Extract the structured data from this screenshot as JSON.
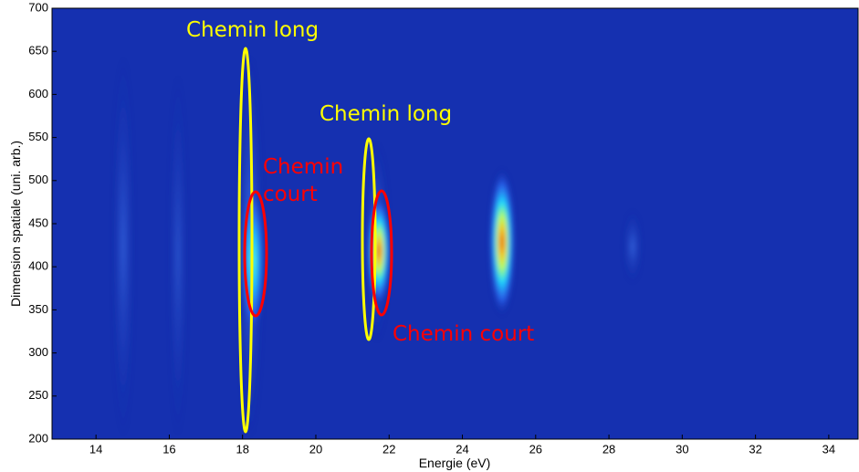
{
  "chart_data": {
    "type": "image",
    "xlabel": "Energie (eV)",
    "ylabel": "Dimension spatiale (uni. arb.)",
    "xlim": [
      12.8,
      34.8
    ],
    "xticks": [
      14,
      16,
      18,
      20,
      22,
      24,
      26,
      28,
      30,
      32,
      34
    ],
    "ylim": [
      200,
      700
    ],
    "yticks": [
      200,
      250,
      300,
      350,
      400,
      450,
      500,
      550,
      600,
      650,
      700
    ],
    "annotations": [
      "Chemin long",
      "Chemin long",
      "Chemin",
      "court",
      "Chemin court"
    ]
  }
}
